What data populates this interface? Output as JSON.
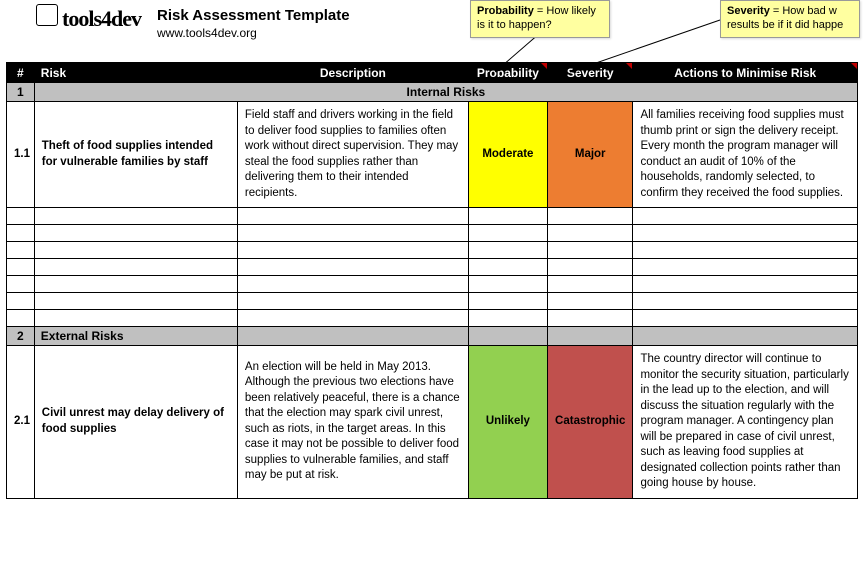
{
  "header": {
    "logo_text": "tools4dev",
    "title": "Risk Assessment Template",
    "url": "www.tools4dev.org"
  },
  "callouts": {
    "probability_html": "<b>Probability</b> = How likely is it to happen?",
    "severity_html": "<b>Severity</b> = How bad w<br>results be if it did happe"
  },
  "columns": {
    "num": "#",
    "risk": "Risk",
    "description": "Description",
    "probability": "Probability",
    "severity": "Severity",
    "actions": "Actions to Minimise Risk"
  },
  "sections": [
    {
      "num": "1",
      "title": "Internal Risks",
      "centered": true,
      "rows": [
        {
          "num": "1.1",
          "risk": "Theft of food supplies intended for vulnerable families by staff",
          "description": "Field staff and drivers working in the field to deliver food supplies to families often work without direct supervision. They may steal the food supplies rather than delivering them to their intended recipients.",
          "probability": "Moderate",
          "prob_color": "#ffff00",
          "severity": "Major",
          "sev_color": "#ed7d31",
          "actions": "All families receiving food supplies must thumb print or sign the delivery receipt. Every month the program manager will conduct an audit of 10% of the households, randomly selected, to confirm they received the food supplies."
        }
      ],
      "empty_rows": 7
    },
    {
      "num": "2",
      "title": "External Risks",
      "centered": false,
      "rows": [
        {
          "num": "2.1",
          "risk": "Civil unrest may delay delivery of food supplies",
          "description": "An election will be held in May 2013. Although the previous two elections have been relatively peaceful, there is a chance that the election may spark civil unrest, such as riots, in the target areas. In this case it may not be possible to deliver food supplies to vulnerable families, and staff may be put at risk.",
          "probability": "Unlikely",
          "prob_color": "#92d050",
          "severity": "Catastrophic",
          "sev_color": "#c0504d",
          "actions": "The country director will continue to monitor the security situation, particularly in the lead up to the election, and will discuss the situation regularly with the program manager. A contingency plan will be prepared in case of civil unrest, such as leaving food supplies at designated collection points rather than going house by house."
        }
      ],
      "empty_rows": 0
    }
  ]
}
